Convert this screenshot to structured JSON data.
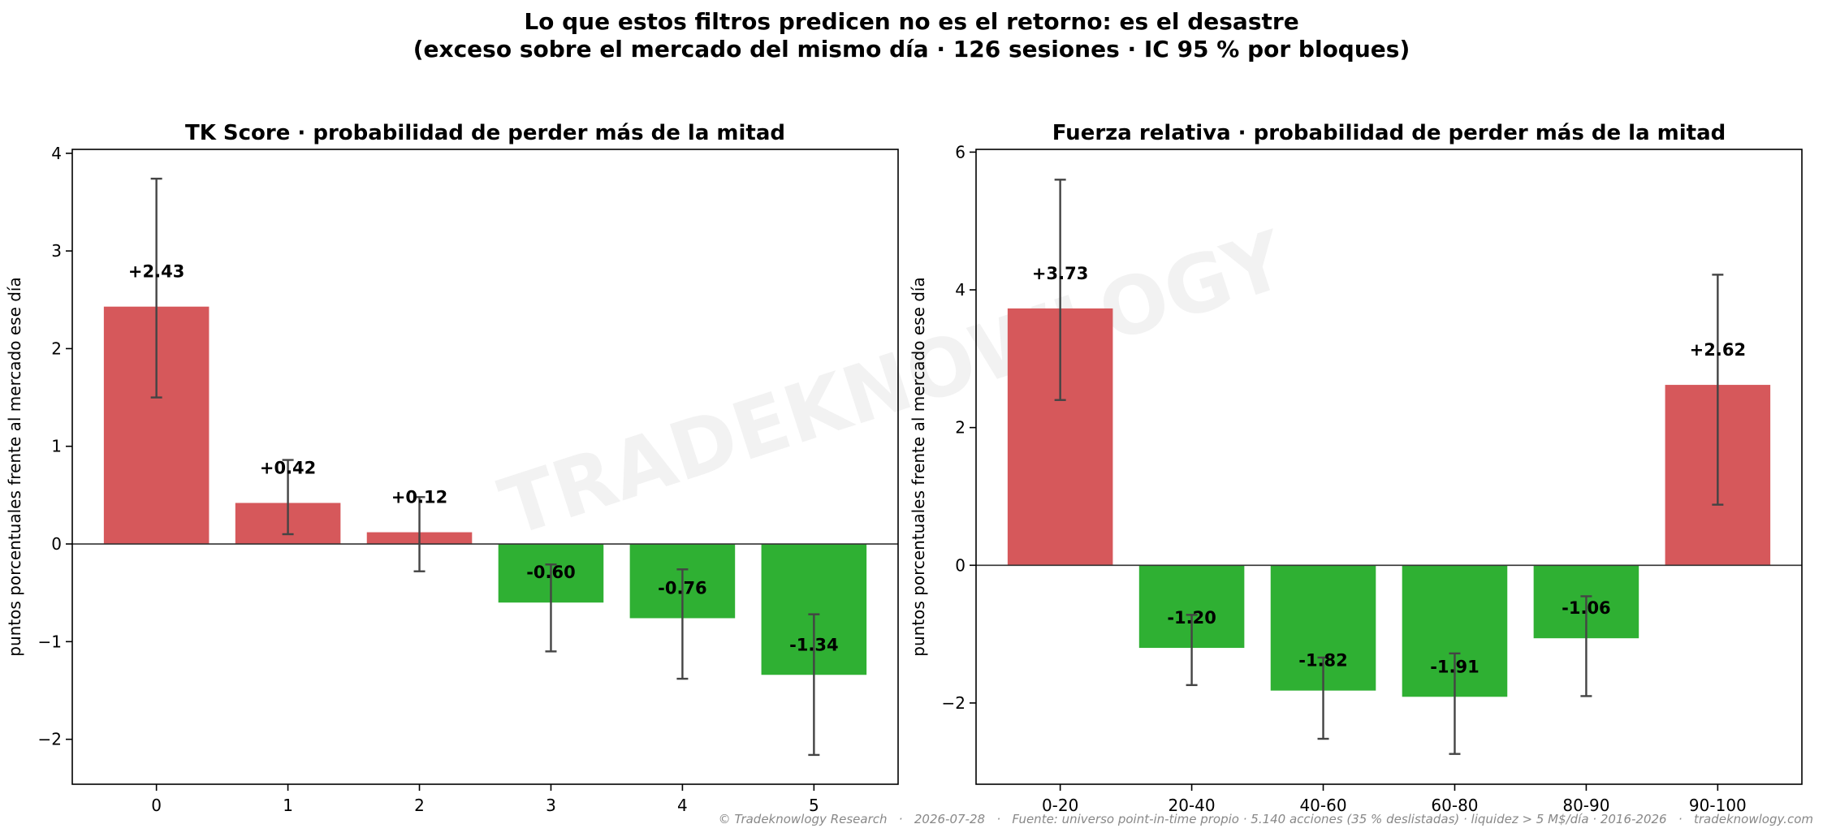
{
  "suptitle": {
    "line1": "Lo que estos filtros predicen no es el retorno: es el desastre",
    "line2": "(exceso sobre el mercado del mismo día · 126 sesiones · IC 95 % por bloques)"
  },
  "watermark": "TRADEKNOWLOGY",
  "footer": "© Tradeknowlogy Research   ·   2026-07-28   ·   Fuente: universo point-in-time propio · 5.140 acciones (35 % deslistadas) · liquidez > 5 M$/día · 2016-2026   ·   tradeknowlogy.com",
  "colors": {
    "positive": "#d6585b",
    "negative": "#2fb033",
    "errorbar": "#444444",
    "axis": "#000000",
    "watermark": "#e8e8e8"
  },
  "chart_data": [
    {
      "type": "bar",
      "title": "TK Score · probabilidad de perder más de la mitad",
      "xlabel": "",
      "ylabel": "puntos porcentuales frente al mercado ese día",
      "categories": [
        "0",
        "1",
        "2",
        "3",
        "4",
        "5"
      ],
      "values": [
        2.43,
        0.42,
        0.12,
        -0.6,
        -0.76,
        -1.34
      ],
      "value_labels": [
        "+2.43",
        "+0.42",
        "+0.12",
        "-0.60",
        "-0.76",
        "-1.34"
      ],
      "ci_low": [
        1.5,
        0.1,
        -0.28,
        -1.1,
        -1.38,
        -2.16
      ],
      "ci_high": [
        3.74,
        0.86,
        0.48,
        -0.21,
        -0.26,
        -0.72
      ],
      "ylim": [
        -2.46,
        4.04
      ],
      "yticks": [
        -2,
        -1,
        0,
        1,
        2,
        3,
        4
      ],
      "ytick_labels": [
        "−2",
        "−1",
        "0",
        "1",
        "2",
        "3",
        "4"
      ],
      "grid": false
    },
    {
      "type": "bar",
      "title": "Fuerza relativa · probabilidad de perder más de la mitad",
      "xlabel": "",
      "ylabel": "puntos porcentuales frente al mercado ese día",
      "categories": [
        "0-20",
        "20-40",
        "40-60",
        "60-80",
        "80-90",
        "90-100"
      ],
      "values": [
        3.73,
        -1.2,
        -1.82,
        -1.91,
        -1.06,
        2.62
      ],
      "value_labels": [
        "+3.73",
        "-1.20",
        "-1.82",
        "-1.91",
        "-1.06",
        "+2.62"
      ],
      "ci_low": [
        2.4,
        -1.74,
        -2.52,
        -2.74,
        -1.9,
        0.88
      ],
      "ci_high": [
        5.6,
        -0.72,
        -1.34,
        -1.28,
        -0.45,
        4.22
      ],
      "ylim": [
        -3.18,
        6.04
      ],
      "yticks": [
        -2,
        0,
        2,
        4,
        6
      ],
      "ytick_labels": [
        "−2",
        "0",
        "2",
        "4",
        "6"
      ],
      "grid": false
    }
  ]
}
